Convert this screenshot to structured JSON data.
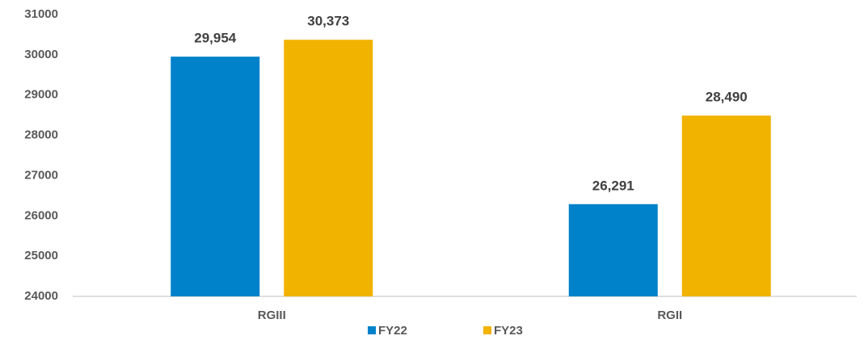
{
  "chart_data": {
    "type": "bar",
    "categories": [
      "RGIII",
      "RGII"
    ],
    "series": [
      {
        "name": "FY22",
        "color": "#0082ca",
        "values": [
          29954,
          26291
        ],
        "value_labels": [
          "29,954",
          "26,291"
        ]
      },
      {
        "name": "FY23",
        "color": "#f2b200",
        "values": [
          30373,
          28490
        ],
        "value_labels": [
          "30,373",
          "28,490"
        ]
      }
    ],
    "ylim": [
      24000,
      31000
    ],
    "yticks": [
      24000,
      25000,
      26000,
      27000,
      28000,
      29000,
      30000,
      31000
    ],
    "grid": false,
    "legend": "bottom"
  }
}
